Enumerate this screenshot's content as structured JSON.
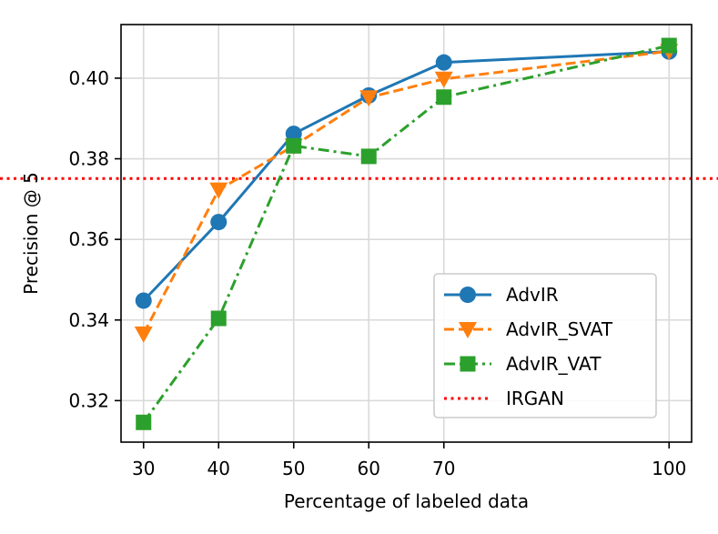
{
  "chart_data": {
    "type": "line",
    "title": "",
    "xlabel": "Percentage of labeled data",
    "ylabel": "Precision @ 5",
    "x": [
      30,
      40,
      50,
      60,
      70,
      100
    ],
    "xticks": [
      30,
      40,
      50,
      60,
      70,
      100
    ],
    "xtick_labels": [
      "30",
      "40",
      "50",
      "60",
      "70",
      "100"
    ],
    "yticks": [
      0.32,
      0.34,
      0.36,
      0.38,
      0.4
    ],
    "ytick_labels": [
      "0.32",
      "0.34",
      "0.36",
      "0.38",
      "0.40"
    ],
    "xlim": [
      27,
      103
    ],
    "ylim": [
      0.3097,
      0.4133
    ],
    "grid": true,
    "legend_position": "lower-right",
    "series": [
      {
        "name": "AdvIR",
        "values": [
          0.3448,
          0.3643,
          0.3862,
          0.3957,
          0.4039,
          0.4066
        ],
        "color": "#1f77b4",
        "marker": "circle",
        "linestyle": "solid"
      },
      {
        "name": "AdvIR_SVAT",
        "values": [
          0.3366,
          0.3723,
          0.3832,
          0.3952,
          0.3998,
          0.4067
        ],
        "color": "#ff7f0e",
        "marker": "triangle-down",
        "linestyle": "dashed"
      },
      {
        "name": "AdvIR_VAT",
        "values": [
          0.3146,
          0.3404,
          0.3832,
          0.3806,
          0.3953,
          0.4081
        ],
        "color": "#2ca02c",
        "marker": "square",
        "linestyle": "dashdot"
      }
    ],
    "reference_lines": [
      {
        "name": "IRGAN",
        "value": 0.3751,
        "color": "#ff0000",
        "linestyle": "dotted"
      }
    ]
  }
}
